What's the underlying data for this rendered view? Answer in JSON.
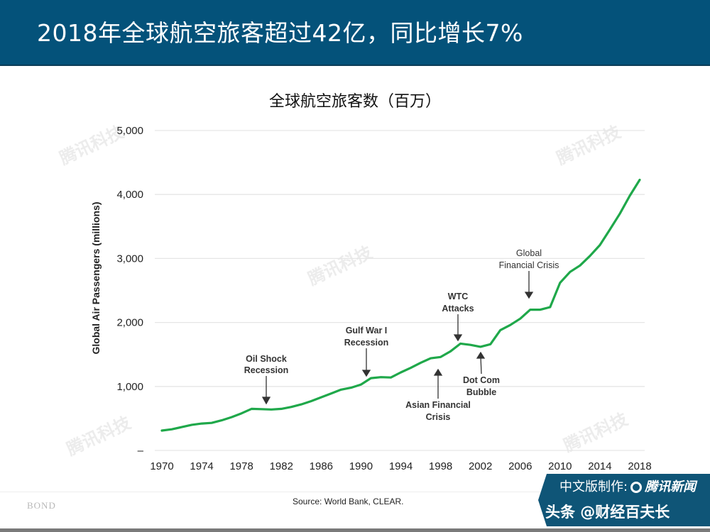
{
  "header": {
    "title": "2018年全球航空旅客超过42亿，同比增长7%"
  },
  "colors": {
    "header_bg": "#04527a",
    "line": "#1fa84a",
    "grid": "#e6e6e6",
    "annotation": "#333333"
  },
  "chart_data": {
    "type": "line",
    "title": "全球航空旅客数（百万）",
    "xlabel": "",
    "ylabel": "Global Air Passengers (millions)",
    "ylim": [
      0,
      5000
    ],
    "xlim": [
      1970,
      2018
    ],
    "grid": true,
    "legend": "none",
    "yticks": [
      0,
      1000,
      2000,
      3000,
      4000,
      5000
    ],
    "ytick_labels": [
      "–",
      "1,000",
      "2,000",
      "3,000",
      "4,000",
      "5,000"
    ],
    "xticks": [
      1970,
      1974,
      1978,
      1982,
      1986,
      1990,
      1994,
      1998,
      2002,
      2006,
      2010,
      2014,
      2018
    ],
    "x": [
      1970,
      1971,
      1972,
      1973,
      1974,
      1975,
      1976,
      1977,
      1978,
      1979,
      1980,
      1981,
      1982,
      1983,
      1984,
      1985,
      1986,
      1987,
      1988,
      1989,
      1990,
      1991,
      1992,
      1993,
      1994,
      1995,
      1996,
      1997,
      1998,
      1999,
      2000,
      2001,
      2002,
      2003,
      2004,
      2005,
      2006,
      2007,
      2008,
      2009,
      2010,
      2011,
      2012,
      2013,
      2014,
      2015,
      2016,
      2017,
      2018
    ],
    "series": [
      {
        "name": "Global Air Passengers (millions)",
        "values": [
          310,
          330,
          365,
          400,
          420,
          430,
          470,
          520,
          580,
          650,
          645,
          640,
          650,
          680,
          720,
          770,
          830,
          890,
          950,
          980,
          1030,
          1130,
          1145,
          1140,
          1220,
          1290,
          1370,
          1440,
          1460,
          1550,
          1670,
          1650,
          1620,
          1660,
          1880,
          1960,
          2060,
          2200,
          2200,
          2240,
          2620,
          2790,
          2890,
          3040,
          3210,
          3450,
          3700,
          3980,
          4230
        ]
      }
    ],
    "annotations": [
      {
        "label": "Oil Shock\nRecession",
        "x": 1980.8,
        "arrow": "down"
      },
      {
        "label": "Gulf War I\nRecession",
        "x": 1990.6,
        "arrow": "down"
      },
      {
        "label": "Asian Financial\nCrisis",
        "x": 1997.8,
        "arrow": "up"
      },
      {
        "label": "WTC\nAttacks",
        "x": 2000.3,
        "arrow": "down"
      },
      {
        "label": "Dot Com\nBubble",
        "x": 2002.7,
        "arrow": "up"
      },
      {
        "label": "Global\nFinancial Crisis",
        "x": 2007.5,
        "arrow": "down"
      }
    ]
  },
  "annotations_text": {
    "oil_1": "Oil Shock",
    "oil_2": "Recession",
    "gulf_1": "Gulf War I",
    "gulf_2": "Recession",
    "asian_1": "Asian Financial",
    "asian_2": "Crisis",
    "wtc_1": "WTC",
    "wtc_2": "Attacks",
    "dot_1": "Dot Com",
    "dot_2": "Bubble",
    "gfc_1": "Global",
    "gfc_2": "Financial Crisis"
  },
  "footer": {
    "source": "Source: World Bank, CLEAR.",
    "brand": "BOND",
    "badge_line1_prefix": "中文版制作:",
    "badge_line1_brand": "腾讯新闻",
    "badge_line2": "头条 @财经百夫长"
  },
  "watermark": "腾讯科技"
}
